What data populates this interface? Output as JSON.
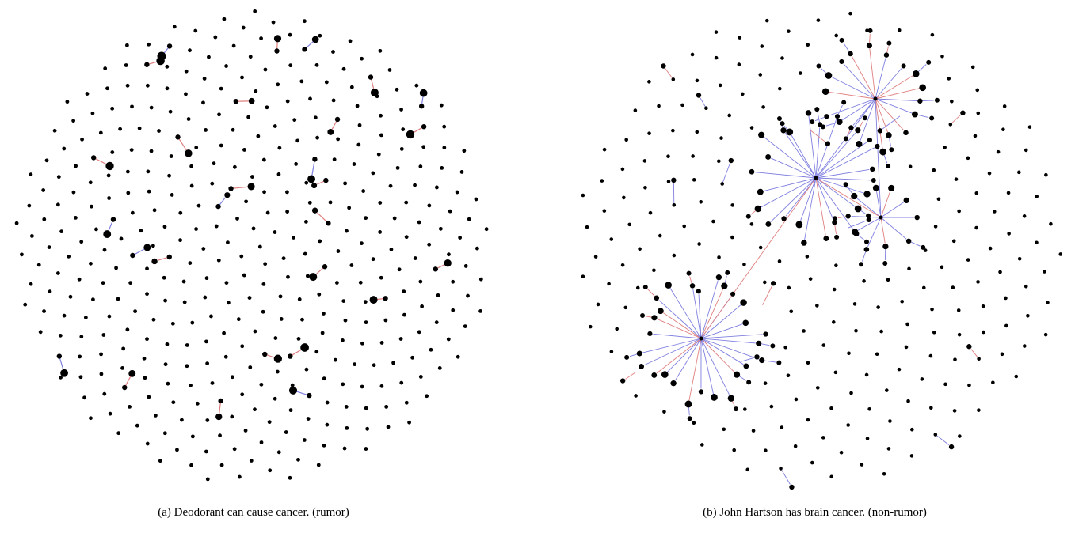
{
  "panels": [
    {
      "id": "a",
      "caption": "(a)  Deodorant can cause cancer. (rumor)",
      "layout_seed": 7,
      "node_count": 420,
      "edges": [
        {
          "color": "red"
        },
        {
          "color": "blue"
        },
        {
          "color": "red"
        },
        {
          "color": "blue"
        },
        {
          "color": "red"
        },
        {
          "color": "red"
        },
        {
          "color": "blue"
        },
        {
          "color": "red"
        },
        {
          "color": "red"
        },
        {
          "color": "red"
        },
        {
          "color": "blue"
        },
        {
          "color": "red"
        },
        {
          "color": "red"
        },
        {
          "color": "blue"
        },
        {
          "color": "red"
        },
        {
          "color": "red"
        },
        {
          "color": "blue"
        },
        {
          "color": "red"
        },
        {
          "color": "red"
        },
        {
          "color": "blue"
        },
        {
          "color": "red"
        },
        {
          "color": "red"
        },
        {
          "color": "red"
        },
        {
          "color": "blue"
        },
        {
          "color": "red"
        },
        {
          "color": "red"
        },
        {
          "color": "blue"
        },
        {
          "color": "red"
        }
      ]
    },
    {
      "id": "b",
      "caption": "(b)  John Hartson has brain cancer. (non-rumor)",
      "layout_seed": 13,
      "node_count": 300,
      "hubs": [
        {
          "name": "hub-top-right",
          "children": 18,
          "red_ratio": 0.35
        },
        {
          "name": "hub-center",
          "children": 24,
          "red_ratio": 0.2
        },
        {
          "name": "hub-right",
          "children": 10,
          "red_ratio": 0.4
        },
        {
          "name": "hub-bottom-left",
          "children": 26,
          "red_ratio": 0.3
        }
      ],
      "extra_edges": 14
    }
  ],
  "colors": {
    "node": "#000000",
    "edge_blue": "#2b2bd4",
    "edge_red": "#d42020",
    "edge_blue_light": "#7f7fe0",
    "edge_red_light": "#e07f7f"
  }
}
